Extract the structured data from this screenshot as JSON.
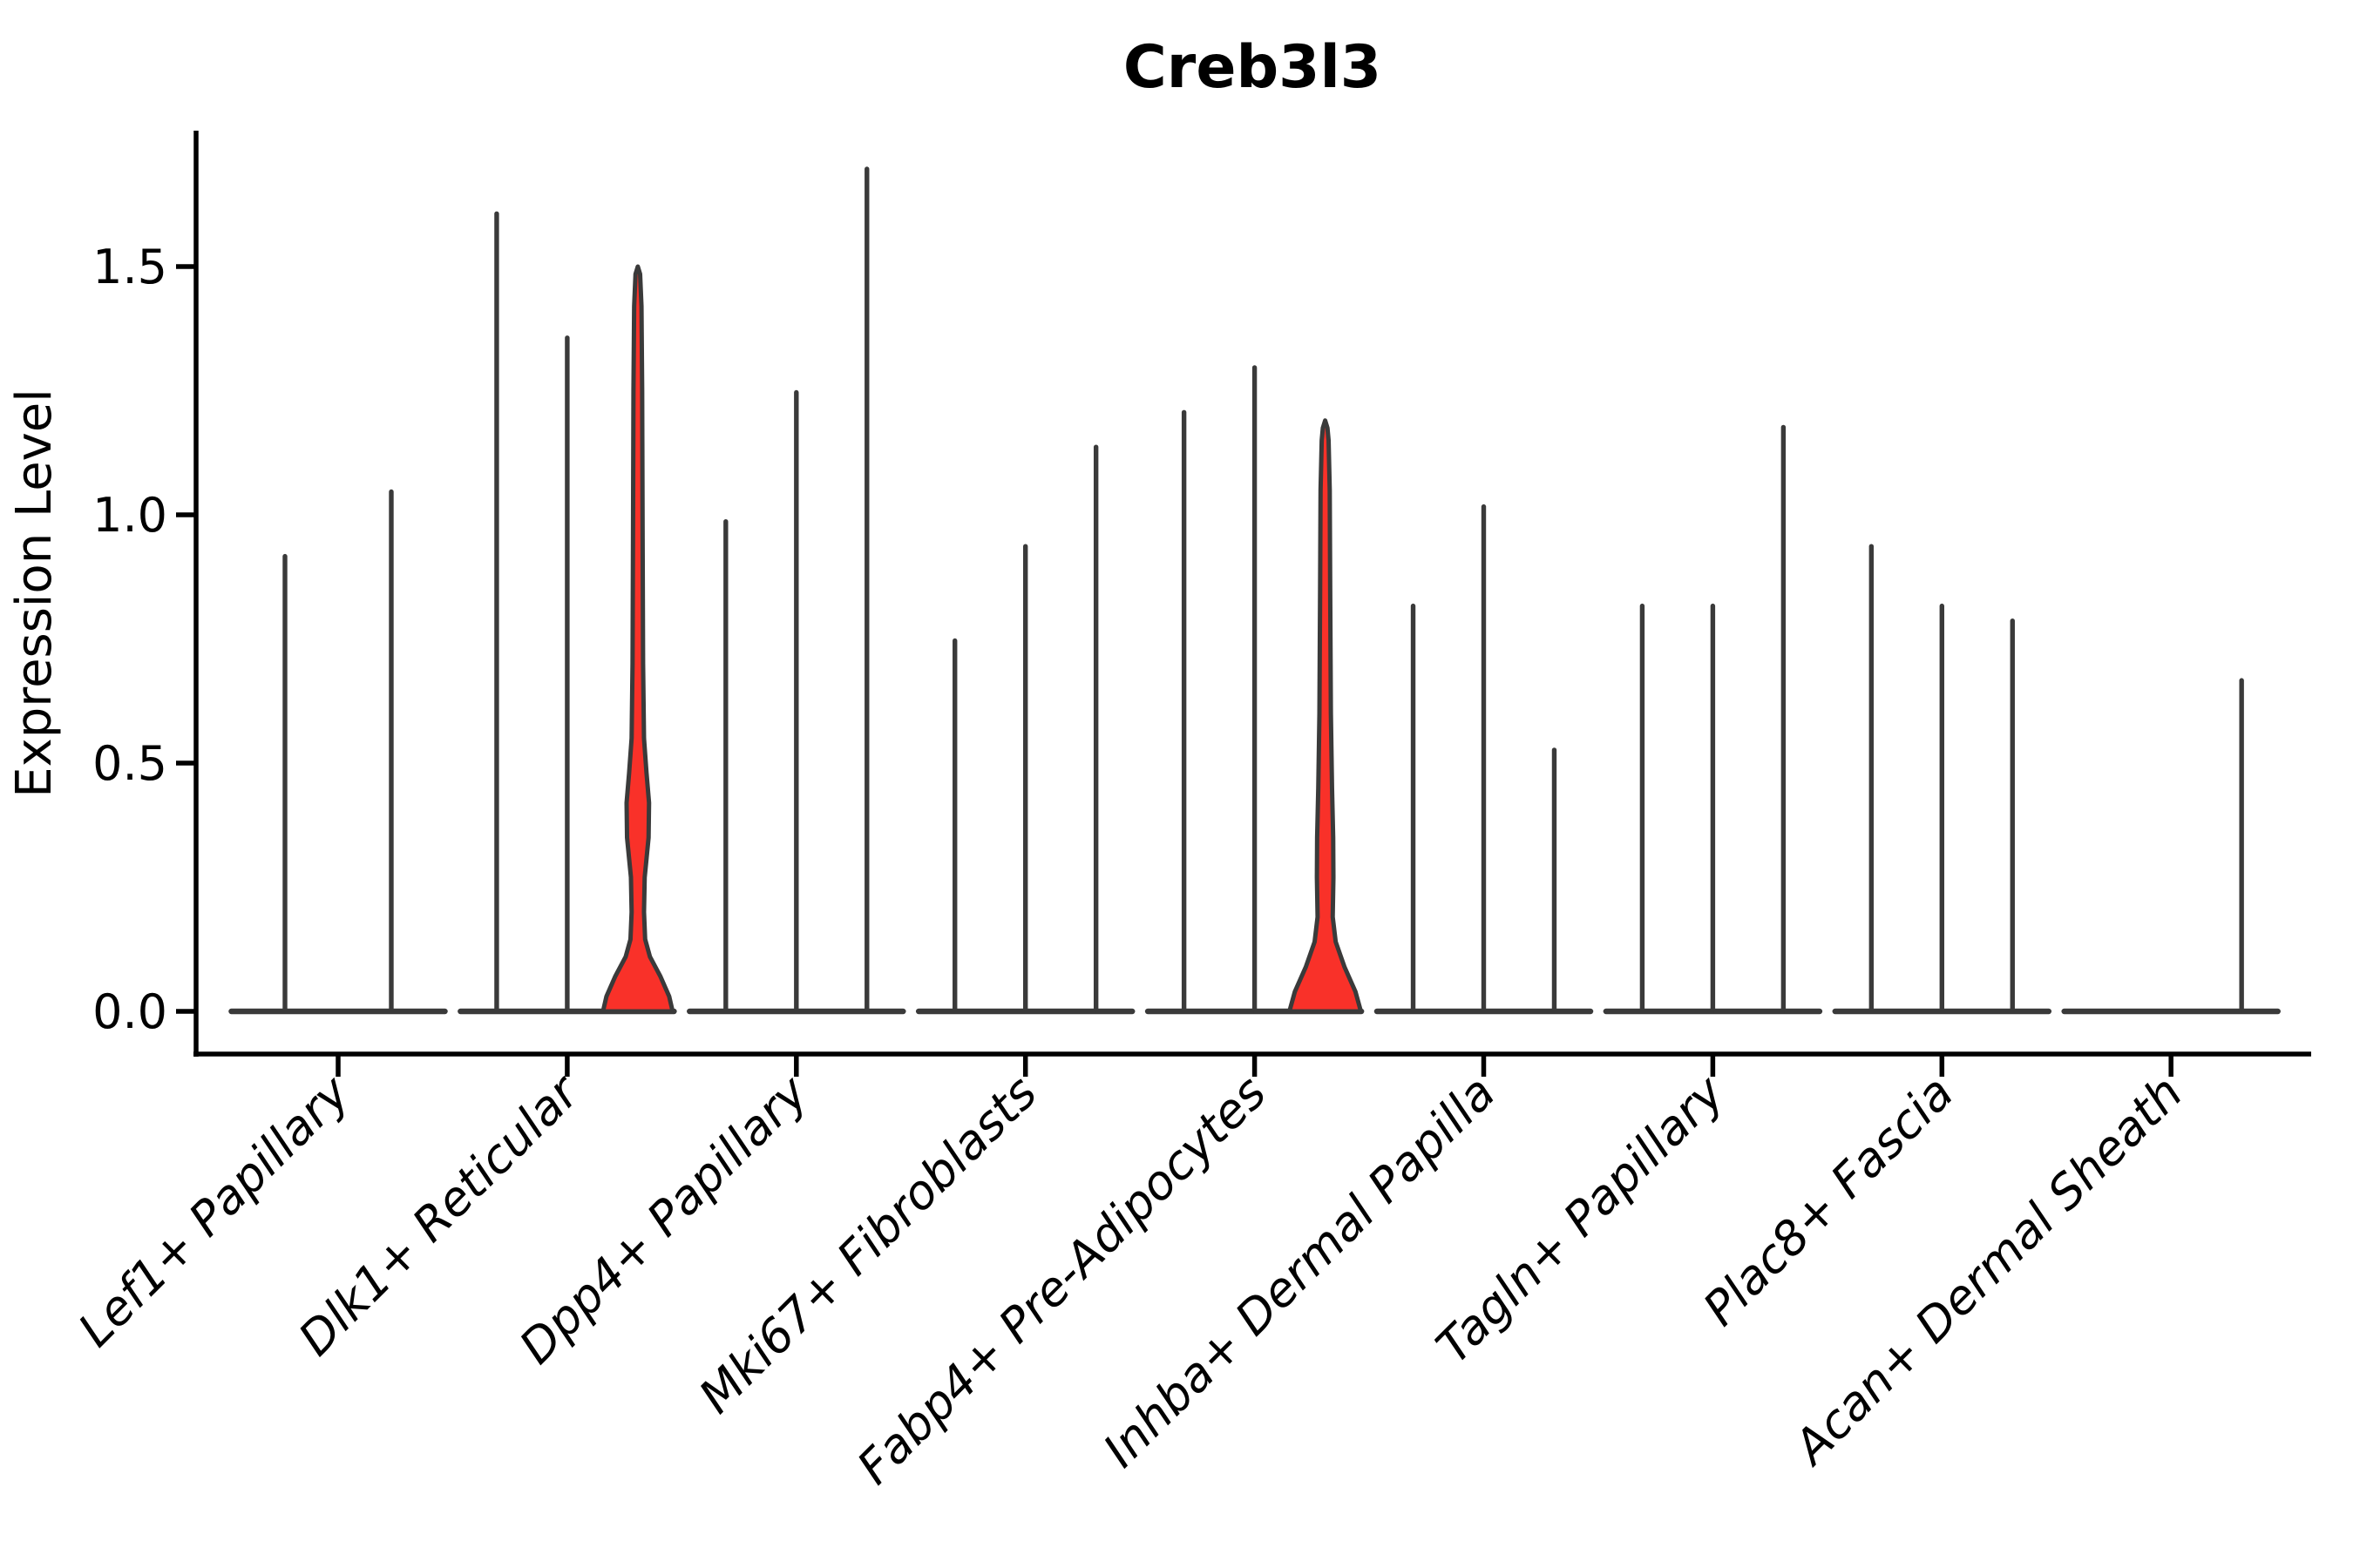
{
  "chart_data": {
    "type": "violin",
    "title": "Creb3l3",
    "xlabel": "",
    "ylabel": "Expression Level",
    "ytick_labels": [
      "0.0",
      "0.5",
      "1.0",
      "1.5"
    ],
    "ytick_values": [
      0.0,
      0.5,
      1.0,
      1.5
    ],
    "ylim": [
      -0.086,
      1.765
    ],
    "grid": false,
    "legend": "none",
    "categories": [
      "Lef1+ Papillary",
      "Dlk1+ Reticular",
      "Dpp4+ Papillary",
      "Mki67+ Fibroblasts",
      "Fabp4+ Pre-Adipocytes",
      "Inhba+ Dermal Papilla",
      "Tagln+ Papillary",
      "Plac8+ Fascia",
      "Acan+ Dermal Sheath"
    ],
    "group_half_width": 0.466,
    "groups": [
      {
        "label": "Lef1+ Papillary",
        "violins": [
          {
            "dx": -0.232,
            "h": 0.92,
            "red": false
          },
          {
            "dx": 0.232,
            "h": 1.05,
            "red": false
          }
        ]
      },
      {
        "label": "Dlk1+ Reticular",
        "violins": [
          {
            "dx": -0.308,
            "h": 1.61,
            "red": false
          },
          {
            "dx": 0.0,
            "h": 1.36,
            "red": false
          },
          {
            "dx": 0.308,
            "h": 1.5,
            "red": true,
            "profile": [
              [
                0,
                0.152
              ],
              [
                0.03,
                0.137
              ],
              [
                0.07,
                0.099
              ],
              [
                0.11,
                0.053
              ],
              [
                0.145,
                0.032
              ],
              [
                0.2,
                0.027
              ],
              [
                0.27,
                0.03
              ],
              [
                0.35,
                0.047
              ],
              [
                0.42,
                0.049
              ],
              [
                0.48,
                0.038
              ],
              [
                0.55,
                0.027
              ],
              [
                0.7,
                0.023
              ],
              [
                0.95,
                0.021
              ],
              [
                1.25,
                0.019
              ],
              [
                1.42,
                0.016
              ],
              [
                1.485,
                0.01
              ],
              [
                1.5,
                0.0
              ]
            ]
          }
        ]
      },
      {
        "label": "Dpp4+ Papillary",
        "violins": [
          {
            "dx": -0.308,
            "h": 0.99,
            "red": false
          },
          {
            "dx": 0.0,
            "h": 1.25,
            "red": false
          },
          {
            "dx": 0.308,
            "h": 1.7,
            "red": false
          }
        ]
      },
      {
        "label": "Mki67+ Fibroblasts",
        "violins": [
          {
            "dx": -0.308,
            "h": 0.75,
            "red": false
          },
          {
            "dx": 0.0,
            "h": 0.94,
            "red": false
          },
          {
            "dx": 0.308,
            "h": 1.14,
            "red": false
          }
        ]
      },
      {
        "label": "Fabp4+ Pre-Adipocytes",
        "violins": [
          {
            "dx": -0.308,
            "h": 1.21,
            "red": false
          },
          {
            "dx": 0.0,
            "h": 1.3,
            "red": false
          },
          {
            "dx": 0.308,
            "h": 1.19,
            "red": true,
            "profile": [
              [
                0,
                0.156
              ],
              [
                0.04,
                0.132
              ],
              [
                0.09,
                0.084
              ],
              [
                0.14,
                0.046
              ],
              [
                0.19,
                0.033
              ],
              [
                0.27,
                0.036
              ],
              [
                0.35,
                0.035
              ],
              [
                0.45,
                0.03
              ],
              [
                0.6,
                0.025
              ],
              [
                0.85,
                0.022
              ],
              [
                1.05,
                0.02
              ],
              [
                1.15,
                0.015
              ],
              [
                1.175,
                0.01
              ],
              [
                1.19,
                0.0
              ]
            ]
          }
        ]
      },
      {
        "label": "Inhba+ Dermal Papilla",
        "violins": [
          {
            "dx": -0.308,
            "h": 0.82,
            "red": false
          },
          {
            "dx": 0.0,
            "h": 1.02,
            "red": false
          },
          {
            "dx": 0.308,
            "h": 0.53,
            "red": false
          }
        ]
      },
      {
        "label": "Tagln+ Papillary",
        "violins": [
          {
            "dx": -0.308,
            "h": 0.82,
            "red": false
          },
          {
            "dx": 0.0,
            "h": 0.82,
            "red": false
          },
          {
            "dx": 0.308,
            "h": 1.18,
            "red": false
          }
        ]
      },
      {
        "label": "Plac8+ Fascia",
        "violins": [
          {
            "dx": -0.308,
            "h": 0.94,
            "red": false
          },
          {
            "dx": 0.0,
            "h": 0.82,
            "red": false
          },
          {
            "dx": 0.308,
            "h": 0.79,
            "red": false
          }
        ]
      },
      {
        "label": "Acan+ Dermal Sheath",
        "violins": [
          {
            "dx": -0.308,
            "h": 0.0,
            "red": false
          },
          {
            "dx": 0.0,
            "h": 0.0,
            "red": false
          },
          {
            "dx": 0.308,
            "h": 0.67,
            "red": false
          }
        ]
      }
    ],
    "colors": {
      "red_fill": "#F93129",
      "violin_line": "#3A3A3A",
      "axis": "#000000",
      "background": "#FFFFFF"
    }
  }
}
